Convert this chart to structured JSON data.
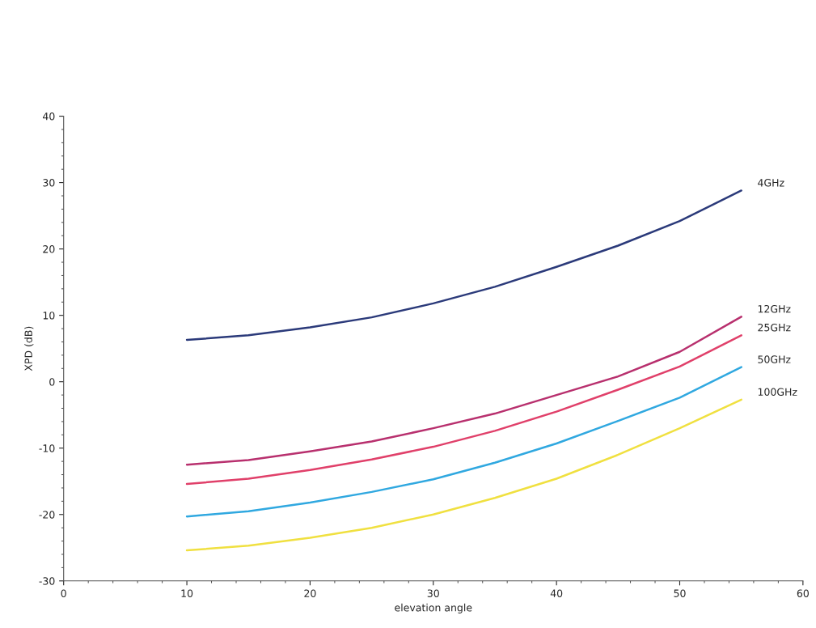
{
  "chart_data": {
    "type": "line",
    "xlabel": "elevation angle",
    "ylabel": "XPD (dB)",
    "x": [
      10,
      15,
      20,
      25,
      30,
      35,
      40,
      45,
      50,
      55
    ],
    "series": [
      {
        "name": "4GHz",
        "color": "#2b3a7a",
        "values": [
          6.3,
          7.0,
          8.2,
          9.7,
          11.8,
          14.3,
          17.3,
          20.5,
          24.2,
          28.8
        ]
      },
      {
        "name": "12GHz",
        "color": "#b8306e",
        "values": [
          -12.5,
          -11.8,
          -10.5,
          -9.0,
          -7.0,
          -4.8,
          -2.0,
          0.8,
          4.5,
          9.8
        ]
      },
      {
        "name": "25GHz",
        "color": "#e0406a",
        "values": [
          -15.4,
          -14.6,
          -13.3,
          -11.7,
          -9.8,
          -7.4,
          -4.5,
          -1.2,
          2.3,
          7.0
        ]
      },
      {
        "name": "50GHz",
        "color": "#30a8e0",
        "values": [
          -20.3,
          -19.5,
          -18.2,
          -16.6,
          -14.7,
          -12.2,
          -9.3,
          -5.9,
          -2.4,
          2.2
        ]
      },
      {
        "name": "100GHz",
        "color": "#f0e040",
        "values": [
          -25.4,
          -24.7,
          -23.5,
          -22.0,
          -20.0,
          -17.5,
          -14.6,
          -11.0,
          -7.0,
          -2.7
        ]
      }
    ],
    "xlim": [
      0,
      60
    ],
    "xticks": [
      0,
      10,
      20,
      30,
      40,
      50,
      60
    ],
    "ylim": [
      -30,
      40
    ],
    "yticks": [
      -30,
      -20,
      -10,
      0,
      10,
      20,
      30,
      40
    ],
    "grid": false,
    "legend": false,
    "marker": "none",
    "line_style": "solid"
  }
}
